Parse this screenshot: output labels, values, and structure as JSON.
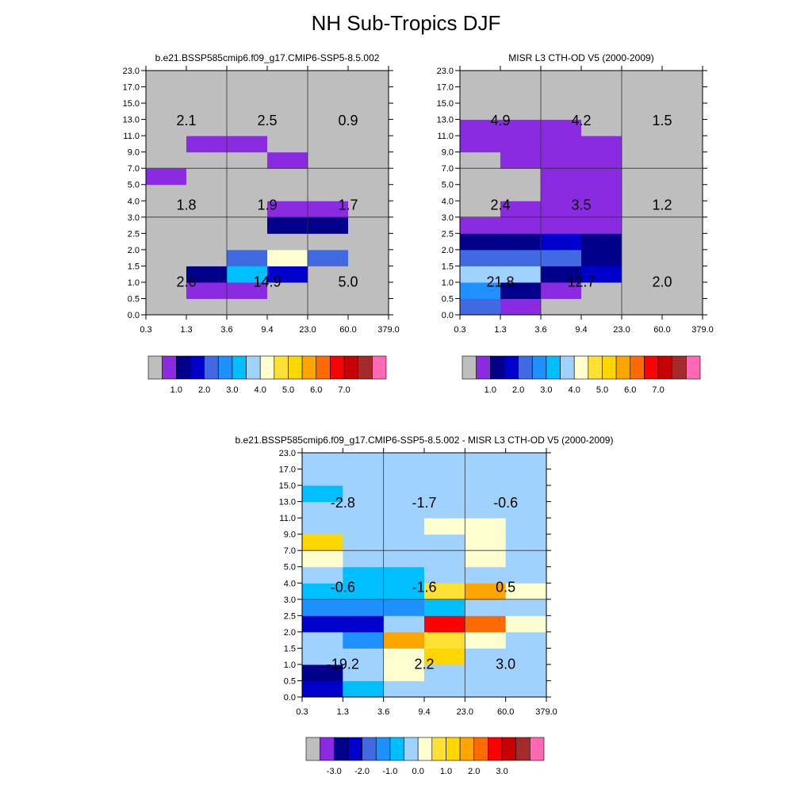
{
  "title": "NH Sub-Tropics DJF",
  "palette": {
    "abs": [
      "#bebebe",
      "#8a2be2",
      "#00008b",
      "#0000cd",
      "#4169e1",
      "#1e90ff",
      "#00bfff",
      "#a0d2ff",
      "#ffffd0",
      "#ffe135",
      "#ffd700",
      "#ffa500",
      "#ff6b00",
      "#ff0000",
      "#c80000",
      "#a52a2a",
      "#ff69b4"
    ],
    "diff": [
      "#bebebe",
      "#8a2be2",
      "#00008b",
      "#0000cd",
      "#4169e1",
      "#1e90ff",
      "#00bfff",
      "#a0d2ff",
      "#ffffd0",
      "#ffe135",
      "#ffd700",
      "#ffa500",
      "#ff6b00",
      "#ff0000",
      "#c80000",
      "#a52a2a",
      "#ff69b4"
    ]
  },
  "chart_data": [
    {
      "type": "heatmap",
      "title": "b.e21.BSSP585cmip6.f09_g17.CMIP6-SSP5-8.5.002",
      "x_ticks": [
        "0.3",
        "1.3",
        "3.6",
        "9.4",
        "23.0",
        "60.0",
        "379.0"
      ],
      "y_ticks": [
        "0.0",
        "0.5",
        "1.0",
        "1.5",
        "2.0",
        "2.5",
        "3.0",
        "4.0",
        "5.0",
        "7.0",
        "9.0",
        "11.0",
        "13.0",
        "15.0",
        "17.0",
        "23.0"
      ],
      "colorbar_labels": [
        "1.0",
        "2.0",
        "3.0",
        "4.0",
        "5.0",
        "6.0",
        "7.0"
      ],
      "grid": [
        [
          0,
          0,
          0,
          0,
          0,
          0
        ],
        [
          0,
          1,
          1,
          0,
          0,
          0
        ],
        [
          0,
          2,
          6,
          3,
          0,
          0
        ],
        [
          0,
          0,
          4,
          8,
          4,
          0
        ],
        [
          0,
          0,
          0,
          0,
          0,
          0
        ],
        [
          0,
          0,
          0,
          2,
          2,
          0
        ],
        [
          0,
          0,
          0,
          1,
          1,
          0
        ],
        [
          0,
          0,
          0,
          0,
          0,
          0
        ],
        [
          1,
          0,
          0,
          0,
          0,
          0
        ],
        [
          0,
          0,
          0,
          1,
          0,
          0
        ],
        [
          0,
          1,
          1,
          0,
          0,
          0
        ],
        [
          0,
          0,
          0,
          0,
          0,
          0
        ],
        [
          0,
          0,
          0,
          0,
          0,
          0
        ],
        [
          0,
          0,
          0,
          0,
          0,
          0
        ],
        [
          0,
          0,
          0,
          0,
          0,
          0
        ]
      ],
      "annotations": [
        {
          "row": "low",
          "col": "thin",
          "text": "2.6"
        },
        {
          "row": "low",
          "col": "medium",
          "text": "14.9"
        },
        {
          "row": "low",
          "col": "thick",
          "text": "5.0"
        },
        {
          "row": "mid",
          "col": "thin",
          "text": "1.8"
        },
        {
          "row": "mid",
          "col": "medium",
          "text": "1.9"
        },
        {
          "row": "mid",
          "col": "thick",
          "text": "1.7"
        },
        {
          "row": "high",
          "col": "thin",
          "text": "2.1"
        },
        {
          "row": "high",
          "col": "medium",
          "text": "2.5"
        },
        {
          "row": "high",
          "col": "thick",
          "text": "0.9"
        }
      ]
    },
    {
      "type": "heatmap",
      "title": "MISR L3 CTH-OD V5 (2000-2009)",
      "x_ticks": [
        "0.3",
        "1.3",
        "3.6",
        "9.4",
        "23.0",
        "60.0",
        "379.0"
      ],
      "y_ticks": [
        "0.0",
        "0.5",
        "1.0",
        "1.5",
        "2.0",
        "2.5",
        "3.0",
        "4.0",
        "5.0",
        "7.0",
        "9.0",
        "11.0",
        "13.0",
        "15.0",
        "17.0",
        "23.0"
      ],
      "colorbar_labels": [
        "1.0",
        "2.0",
        "3.0",
        "4.0",
        "5.0",
        "6.0",
        "7.0"
      ],
      "grid": [
        [
          4,
          1,
          0,
          0,
          0,
          0
        ],
        [
          5,
          2,
          1,
          0,
          0,
          0
        ],
        [
          7,
          7,
          2,
          3,
          0,
          0
        ],
        [
          4,
          4,
          4,
          2,
          0,
          0
        ],
        [
          2,
          2,
          3,
          2,
          0,
          0
        ],
        [
          1,
          1,
          1,
          1,
          0,
          0
        ],
        [
          0,
          1,
          1,
          1,
          0,
          0
        ],
        [
          0,
          0,
          1,
          1,
          0,
          0
        ],
        [
          0,
          0,
          1,
          1,
          0,
          0
        ],
        [
          0,
          1,
          1,
          1,
          0,
          0
        ],
        [
          1,
          1,
          1,
          1,
          0,
          0
        ],
        [
          1,
          1,
          1,
          0,
          0,
          0
        ],
        [
          0,
          0,
          0,
          0,
          0,
          0
        ],
        [
          0,
          0,
          0,
          0,
          0,
          0
        ],
        [
          0,
          0,
          0,
          0,
          0,
          0
        ]
      ],
      "annotations": [
        {
          "row": "low",
          "col": "thin",
          "text": "21.8"
        },
        {
          "row": "low",
          "col": "medium",
          "text": "12.7"
        },
        {
          "row": "low",
          "col": "thick",
          "text": "2.0"
        },
        {
          "row": "mid",
          "col": "thin",
          "text": "2.4"
        },
        {
          "row": "mid",
          "col": "medium",
          "text": "3.5"
        },
        {
          "row": "mid",
          "col": "thick",
          "text": "1.2"
        },
        {
          "row": "high",
          "col": "thin",
          "text": "4.9"
        },
        {
          "row": "high",
          "col": "medium",
          "text": "4.2"
        },
        {
          "row": "high",
          "col": "thick",
          "text": "1.5"
        }
      ]
    },
    {
      "type": "heatmap",
      "title": "b.e21.BSSP585cmip6.f09_g17.CMIP6-SSP5-8.5.002 - MISR L3 CTH-OD V5 (2000-2009)",
      "x_ticks": [
        "0.3",
        "1.3",
        "3.6",
        "9.4",
        "23.0",
        "60.0",
        "379.0"
      ],
      "y_ticks": [
        "0.0",
        "0.5",
        "1.0",
        "1.5",
        "2.0",
        "2.5",
        "3.0",
        "4.0",
        "5.0",
        "7.0",
        "9.0",
        "11.0",
        "13.0",
        "15.0",
        "17.0",
        "23.0"
      ],
      "colorbar_labels": [
        "-3.0",
        "-2.0",
        "-1.0",
        "0.0",
        "1.0",
        "2.0",
        "3.0"
      ],
      "grid": [
        [
          3,
          6,
          7,
          7,
          7,
          7
        ],
        [
          2,
          7,
          8,
          7,
          7,
          7
        ],
        [
          7,
          7,
          8,
          10,
          7,
          7
        ],
        [
          7,
          5,
          11,
          9,
          8,
          7
        ],
        [
          3,
          3,
          7,
          13,
          12,
          8
        ],
        [
          5,
          5,
          5,
          6,
          7,
          7
        ],
        [
          6,
          6,
          6,
          9,
          11,
          8
        ],
        [
          7,
          6,
          6,
          7,
          7,
          7
        ],
        [
          8,
          7,
          7,
          7,
          8,
          7
        ],
        [
          10,
          7,
          7,
          7,
          8,
          7
        ],
        [
          7,
          7,
          7,
          8,
          8,
          7
        ],
        [
          7,
          7,
          7,
          7,
          7,
          7
        ],
        [
          6,
          7,
          7,
          7,
          7,
          7
        ],
        [
          7,
          7,
          7,
          7,
          7,
          7
        ],
        [
          7,
          7,
          7,
          7,
          7,
          7
        ]
      ],
      "annotations": [
        {
          "row": "low",
          "col": "thin",
          "text": "-19.2"
        },
        {
          "row": "low",
          "col": "medium",
          "text": "2.2"
        },
        {
          "row": "low",
          "col": "thick",
          "text": "3.0"
        },
        {
          "row": "mid",
          "col": "thin",
          "text": "-0.6"
        },
        {
          "row": "mid",
          "col": "medium",
          "text": "-1.6"
        },
        {
          "row": "mid",
          "col": "thick",
          "text": "0.5"
        },
        {
          "row": "high",
          "col": "thin",
          "text": "-2.8"
        },
        {
          "row": "high",
          "col": "medium",
          "text": "-1.7"
        },
        {
          "row": "high",
          "col": "thick",
          "text": "-0.6"
        }
      ]
    }
  ]
}
